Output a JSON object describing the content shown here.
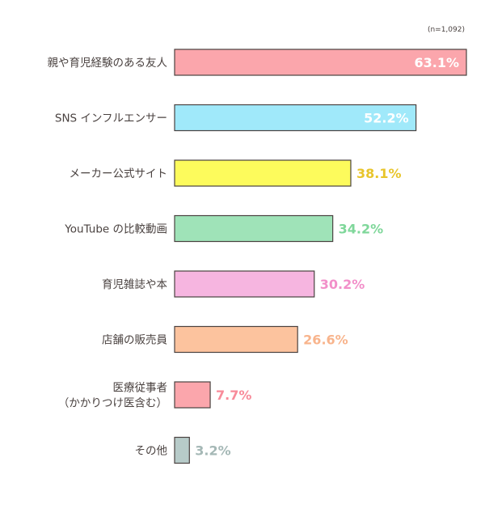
{
  "chart_data": {
    "type": "bar",
    "orientation": "horizontal",
    "note": "(n=1,092)",
    "title": "",
    "xlabel": "",
    "ylabel": "",
    "xlim": [
      0,
      63.1
    ],
    "grid": false,
    "legend": "none",
    "categories": [
      [
        "親や育児経験のある友人"
      ],
      [
        "SNS インフルエンサー"
      ],
      [
        "メーカー公式サイト"
      ],
      [
        "YouTube の比較動画"
      ],
      [
        "育児雑誌や本"
      ],
      [
        "店舗の販売員"
      ],
      [
        "医療従事者",
        "（かかりつけ医含む）"
      ],
      [
        "その他"
      ]
    ],
    "values": [
      63.1,
      52.2,
      38.1,
      34.2,
      30.2,
      26.6,
      7.7,
      3.2
    ],
    "value_labels": [
      "63.1%",
      "52.2%",
      "38.1%",
      "34.2%",
      "30.2%",
      "26.6%",
      "7.7%",
      "3.2%"
    ],
    "bar_colors": [
      "#fba6ac",
      "#a0e9fa",
      "#fdfb5c",
      "#9fe3b8",
      "#f6b5e0",
      "#fcc39e",
      "#fba6ac",
      "#b7cbc9"
    ],
    "label_colors": [
      "#ffffff",
      "#ffffff",
      "#e8c52c",
      "#7fd79a",
      "#f28fc9",
      "#f8b48c",
      "#f88b9a",
      "#a5b8b6"
    ],
    "label_inside": [
      true,
      true,
      false,
      false,
      false,
      false,
      false,
      false
    ]
  }
}
